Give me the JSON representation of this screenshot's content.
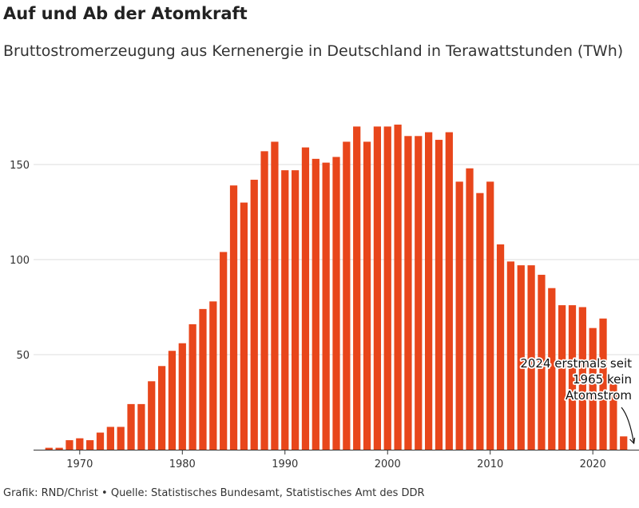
{
  "header": {
    "title": "Auf und Ab der Atomkraft",
    "subtitle": "Bruttostromerzeugung aus Kernenergie in Deutschland in Terawattstunden (TWh)"
  },
  "footer": {
    "credit": "Grafik: RND/Christ • Quelle: Statistisches Bundesamt, Statistisches Amt des DDR"
  },
  "colors": {
    "bar": "#e8461b",
    "grid": "#dddddd",
    "axis": "#333333"
  },
  "chart_data": {
    "type": "bar",
    "title": "Auf und Ab der Atomkraft",
    "subtitle": "Bruttostromerzeugung aus Kernenergie in Deutschland in Terawattstunden (TWh)",
    "xlabel": "",
    "ylabel": "",
    "x_ticks": [
      1970,
      1980,
      1990,
      2000,
      2010,
      2020
    ],
    "y_ticks": [
      50,
      100,
      150
    ],
    "xlim": [
      1965.5,
      2024.5
    ],
    "ylim": [
      0,
      180
    ],
    "grid": true,
    "legend": "none",
    "categories": [
      1965,
      1966,
      1967,
      1968,
      1969,
      1970,
      1971,
      1972,
      1973,
      1974,
      1975,
      1976,
      1977,
      1978,
      1979,
      1980,
      1981,
      1982,
      1983,
      1984,
      1985,
      1986,
      1987,
      1988,
      1989,
      1990,
      1991,
      1992,
      1993,
      1994,
      1995,
      1996,
      1997,
      1998,
      1999,
      2000,
      2001,
      2002,
      2003,
      2004,
      2005,
      2006,
      2007,
      2008,
      2009,
      2010,
      2011,
      2012,
      2013,
      2014,
      2015,
      2016,
      2017,
      2018,
      2019,
      2020,
      2021,
      2022,
      2023,
      2024
    ],
    "values": [
      0,
      0,
      1,
      1,
      5,
      6,
      5,
      9,
      12,
      12,
      24,
      24,
      36,
      44,
      52,
      56,
      66,
      74,
      78,
      104,
      139,
      130,
      142,
      157,
      162,
      147,
      147,
      159,
      153,
      151,
      154,
      162,
      170,
      162,
      170,
      170,
      171,
      165,
      165,
      167,
      163,
      167,
      141,
      148,
      135,
      141,
      108,
      99,
      97,
      97,
      92,
      85,
      76,
      76,
      75,
      64,
      69,
      35,
      7,
      0
    ],
    "annotations": [
      {
        "text_lines": [
          "2024 erstmals seit",
          "1965 kein",
          "Atomstrom"
        ],
        "x": 2024,
        "y": 0
      }
    ]
  }
}
